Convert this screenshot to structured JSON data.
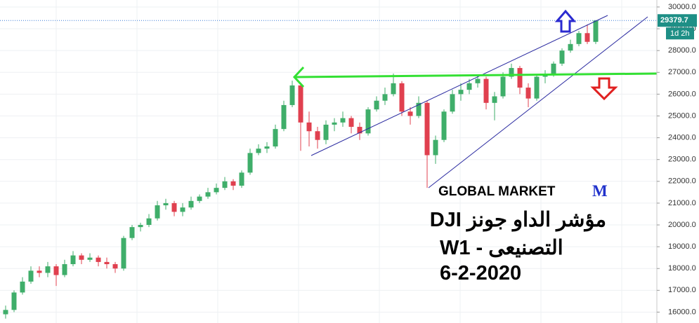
{
  "chart_data": {
    "type": "candlestick",
    "open": [
      15900,
      16100,
      16900,
      17400,
      17900,
      17800,
      18100,
      17700,
      18200,
      18600,
      18400,
      18500,
      18300,
      18200,
      18000,
      19400,
      19900,
      20000,
      20300,
      20900,
      21000,
      20600,
      20800,
      21100,
      21300,
      21500,
      21700,
      22000,
      21800,
      22400,
      23300,
      23500,
      23600,
      24400,
      25500,
      26400,
      24700,
      24300,
      23900,
      24600,
      24700,
      24900,
      24500,
      24200,
      25300,
      25700,
      26000,
      26500,
      25200,
      25000,
      25600,
      23200,
      23900,
      25200,
      26000,
      26200,
      26500,
      26700,
      25600,
      25900,
      26800,
      27200,
      26300,
      25800,
      26800,
      26900,
      27400,
      28000,
      28300,
      28800,
      28400
    ],
    "high": [
      16300,
      17000,
      17600,
      18100,
      18100,
      18300,
      18200,
      18400,
      18800,
      18700,
      18700,
      18600,
      18500,
      18300,
      19500,
      20000,
      20100,
      20500,
      21100,
      21200,
      21100,
      21000,
      21300,
      21400,
      21700,
      21900,
      22200,
      22100,
      22500,
      23500,
      23700,
      23800,
      24600,
      25700,
      26620,
      26500,
      25200,
      24500,
      24800,
      24900,
      25200,
      25000,
      24700,
      25400,
      25900,
      26300,
      26950,
      26600,
      25400,
      25900,
      25700,
      24100,
      25300,
      26200,
      26500,
      26700,
      26900,
      26800,
      26100,
      27000,
      27400,
      27300,
      26500,
      26900,
      27100,
      27500,
      28100,
      28500,
      28900,
      29200,
      29400
    ],
    "low": [
      15700,
      16000,
      16800,
      17300,
      17600,
      17600,
      17200,
      17600,
      18100,
      18200,
      18300,
      18100,
      18000,
      17800,
      17900,
      19300,
      19700,
      19900,
      20200,
      20700,
      20400,
      20400,
      20700,
      21000,
      21200,
      21400,
      21600,
      21600,
      21700,
      22300,
      23200,
      23300,
      23500,
      24300,
      25400,
      23400,
      23600,
      23500,
      23700,
      24300,
      24500,
      24200,
      23900,
      24100,
      25200,
      25500,
      25900,
      25000,
      24600,
      24900,
      21700,
      22800,
      23800,
      25100,
      25700,
      26000,
      26300,
      25300,
      24800,
      25800,
      26700,
      26000,
      25400,
      25700,
      26500,
      26800,
      27300,
      27900,
      28200,
      28300,
      28300
    ],
    "close": [
      16100,
      16900,
      17400,
      17900,
      17800,
      18100,
      17700,
      18200,
      18600,
      18400,
      18500,
      18300,
      18200,
      18000,
      19400,
      19900,
      20000,
      20300,
      20900,
      21000,
      20600,
      20800,
      21100,
      21300,
      21500,
      21700,
      22000,
      21800,
      22400,
      23300,
      23500,
      23600,
      24400,
      25500,
      26400,
      24700,
      24300,
      23900,
      24600,
      24700,
      24900,
      24500,
      24200,
      25300,
      25700,
      26000,
      26500,
      25200,
      25000,
      25600,
      23200,
      23900,
      25200,
      26000,
      26200,
      26500,
      26700,
      25600,
      25900,
      26800,
      27200,
      26300,
      25800,
      26800,
      26900,
      27400,
      28000,
      28300,
      28800,
      28400,
      29379.7
    ],
    "up_color": "#3fae6a",
    "down_color": "#e0404f",
    "ylim": [
      15500,
      30320
    ],
    "yticks": [
      {
        "value": 16000,
        "label": "16000.0"
      },
      {
        "value": 17000,
        "label": "17000.0"
      },
      {
        "value": 18000,
        "label": "18000.0"
      },
      {
        "value": 19000,
        "label": "19000.0"
      },
      {
        "value": 20000,
        "label": "20000.0"
      },
      {
        "value": 21000,
        "label": "21000.0"
      },
      {
        "value": 22000,
        "label": "22000.0"
      },
      {
        "value": 23000,
        "label": "23000.0"
      },
      {
        "value": 24000,
        "label": "24000.0"
      },
      {
        "value": 25000,
        "label": "25000.0"
      },
      {
        "value": 26000,
        "label": "26000.0"
      },
      {
        "value": 27000,
        "label": "27000.0"
      },
      {
        "value": 28000,
        "label": "28000.0"
      },
      {
        "value": 29000,
        "label": "29000.0"
      },
      {
        "value": 30000,
        "label": "30000.0"
      }
    ],
    "grid": true,
    "countdown": "1d 2h",
    "brand": "GLOBAL MARKET",
    "brand_logo": "M",
    "title_line1": "مؤشر الداو جونز DJI",
    "title_line2": "التصنيعى - W1",
    "date": "6-2-2020"
  }
}
